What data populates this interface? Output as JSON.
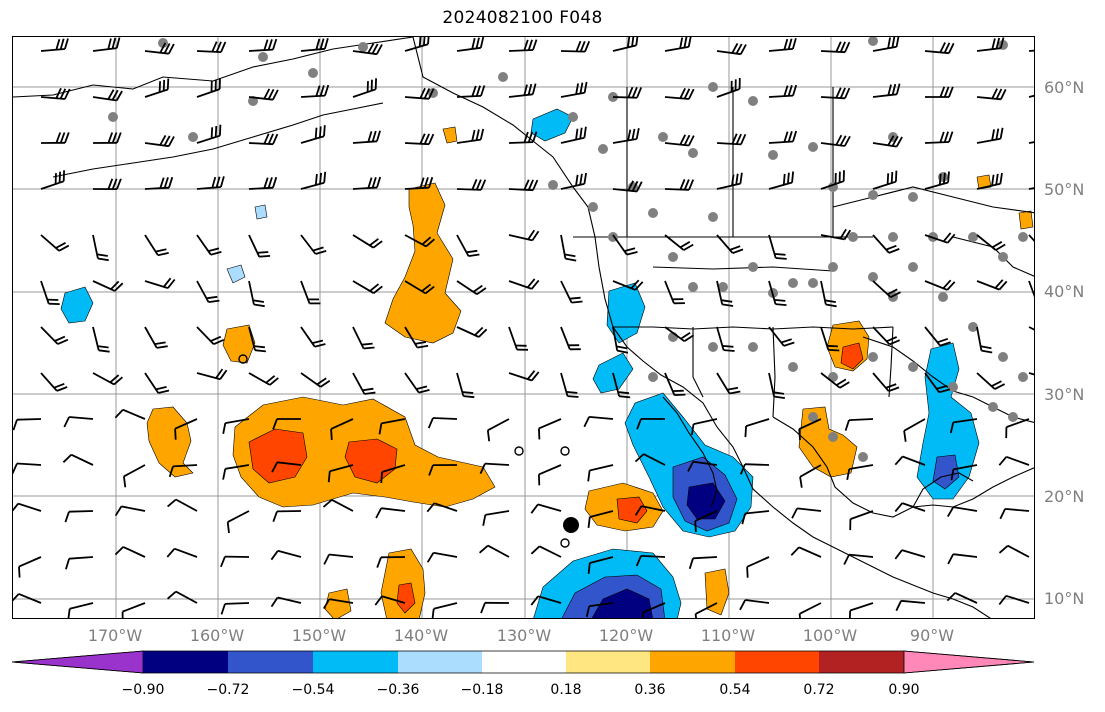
{
  "title": "2024082100 F048",
  "lat_labels": [
    "60°N",
    "50°N",
    "40°N",
    "30°N",
    "20°N",
    "10°N"
  ],
  "lon_labels": [
    "170°W",
    "160°W",
    "150°W",
    "140°W",
    "130°W",
    "120°W",
    "110°W",
    "100°W",
    "90°W"
  ],
  "colorbar": {
    "tick_labels": [
      "−0.90",
      "−0.72",
      "−0.54",
      "−0.36",
      "−0.18",
      "0.18",
      "0.36",
      "0.54",
      "0.72",
      "0.90"
    ],
    "colors": [
      "#9933cc",
      "#000080",
      "#3355cc",
      "#00bbf5",
      "#aaddff",
      "#ffffff",
      "#ffe680",
      "#ffa500",
      "#ff4500",
      "#b22222",
      "#ff88b8"
    ]
  },
  "field_colors": {
    "pos_light": "#ffe680",
    "pos_mid": "#ffa500",
    "pos_strong": "#ff4500",
    "neg_light": "#aaddff",
    "neg_mid": "#00bbf5",
    "neg_strong": "#3355cc",
    "neg_max": "#000080",
    "station": "#808080",
    "gridline": "#999999",
    "coastline": "#000000"
  }
}
